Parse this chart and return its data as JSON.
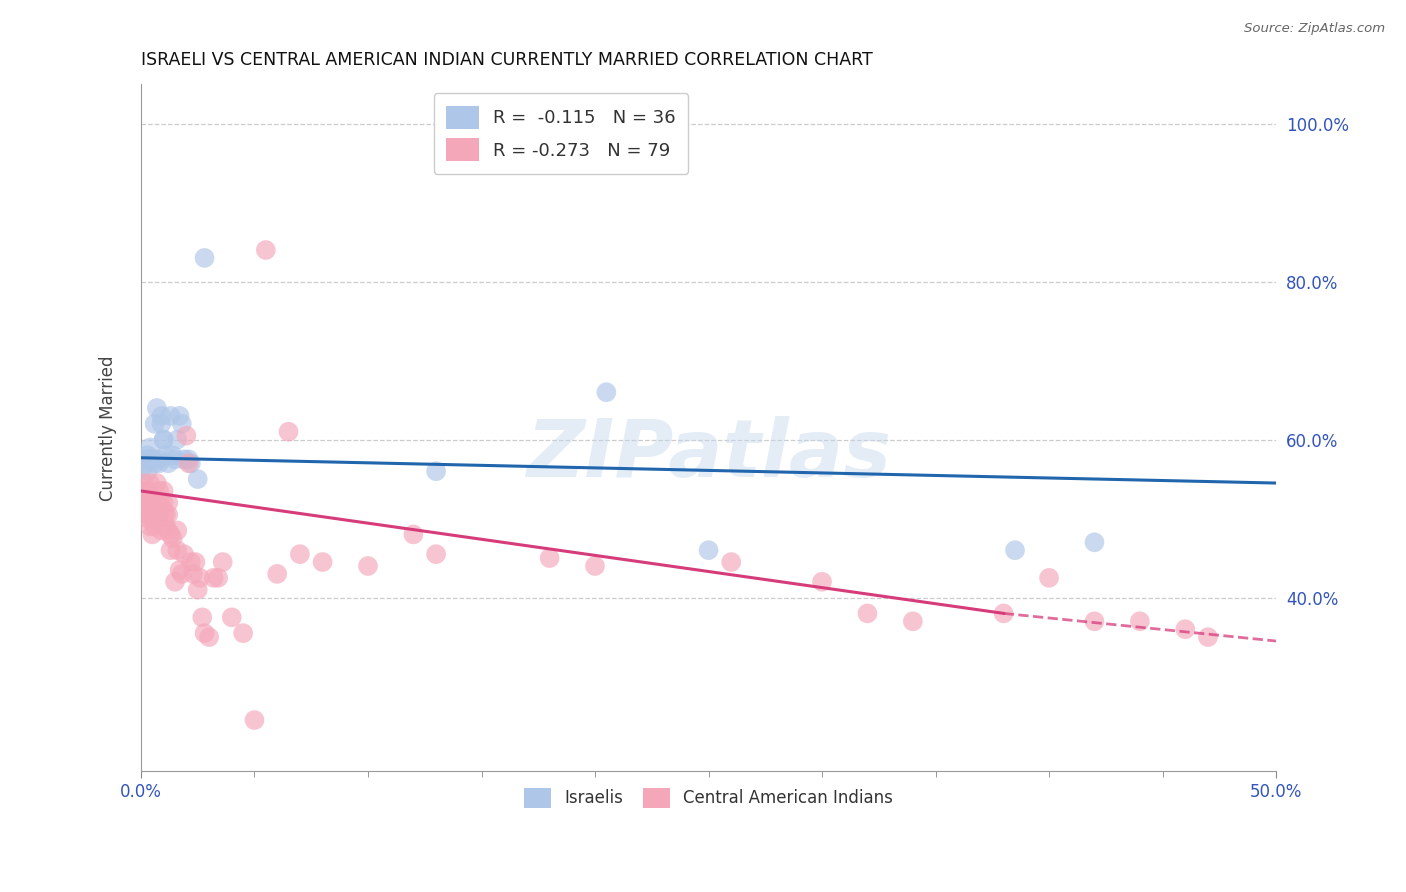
{
  "title": "ISRAELI VS CENTRAL AMERICAN INDIAN CURRENTLY MARRIED CORRELATION CHART",
  "source": "Source: ZipAtlas.com",
  "ylabel": "Currently Married",
  "xlim": [
    0.0,
    0.5
  ],
  "ylim": [
    0.18,
    1.05
  ],
  "xticks_minor": [
    0.05,
    0.1,
    0.15,
    0.2,
    0.25,
    0.3,
    0.35,
    0.4,
    0.45
  ],
  "xticks_labeled": [
    0.0,
    0.5
  ],
  "xtick_labels": [
    "0.0%",
    "50.0%"
  ],
  "yticks": [
    0.4,
    0.6,
    0.8,
    1.0
  ],
  "ytick_labels": [
    "40.0%",
    "60.0%",
    "80.0%",
    "100.0%"
  ],
  "legend_r_blue": "R =  -0.115",
  "legend_n_blue": "N = 36",
  "legend_r_pink": "R = -0.273",
  "legend_n_pink": "N = 79",
  "legend_label_blue": "Israelis",
  "legend_label_pink": "Central American Indians",
  "blue_color": "#aec6e8",
  "pink_color": "#f4a7b9",
  "trend_blue": "#2166ac",
  "trend_pink": "#d63b7a",
  "tick_label_color": "#3355bb",
  "watermark": "ZIPatlas",
  "israelis_x": [
    0.001,
    0.002,
    0.002,
    0.003,
    0.003,
    0.004,
    0.004,
    0.005,
    0.005,
    0.006,
    0.006,
    0.007,
    0.008,
    0.008,
    0.009,
    0.009,
    0.01,
    0.01,
    0.011,
    0.012,
    0.013,
    0.014,
    0.015,
    0.016,
    0.017,
    0.018,
    0.019,
    0.021,
    0.022,
    0.025,
    0.028,
    0.13,
    0.205,
    0.25,
    0.385,
    0.42
  ],
  "israelis_y": [
    0.565,
    0.575,
    0.57,
    0.58,
    0.56,
    0.575,
    0.59,
    0.575,
    0.575,
    0.57,
    0.62,
    0.64,
    0.57,
    0.575,
    0.63,
    0.62,
    0.6,
    0.6,
    0.58,
    0.57,
    0.63,
    0.58,
    0.575,
    0.6,
    0.63,
    0.62,
    0.575,
    0.575,
    0.57,
    0.55,
    0.83,
    0.56,
    0.66,
    0.46,
    0.46,
    0.47
  ],
  "ca_indians_x": [
    0.001,
    0.001,
    0.001,
    0.002,
    0.002,
    0.002,
    0.003,
    0.003,
    0.003,
    0.004,
    0.004,
    0.004,
    0.005,
    0.005,
    0.005,
    0.006,
    0.006,
    0.006,
    0.007,
    0.007,
    0.007,
    0.008,
    0.008,
    0.008,
    0.009,
    0.009,
    0.01,
    0.01,
    0.01,
    0.011,
    0.011,
    0.012,
    0.012,
    0.012,
    0.013,
    0.013,
    0.014,
    0.015,
    0.016,
    0.016,
    0.017,
    0.018,
    0.019,
    0.02,
    0.021,
    0.022,
    0.023,
    0.024,
    0.025,
    0.026,
    0.027,
    0.028,
    0.03,
    0.032,
    0.034,
    0.036,
    0.04,
    0.045,
    0.05,
    0.055,
    0.06,
    0.065,
    0.07,
    0.08,
    0.1,
    0.12,
    0.13,
    0.18,
    0.2,
    0.26,
    0.3,
    0.32,
    0.34,
    0.38,
    0.4,
    0.42,
    0.44,
    0.46,
    0.47
  ],
  "ca_indians_y": [
    0.535,
    0.545,
    0.52,
    0.505,
    0.52,
    0.535,
    0.5,
    0.515,
    0.535,
    0.49,
    0.505,
    0.545,
    0.48,
    0.5,
    0.52,
    0.49,
    0.515,
    0.52,
    0.5,
    0.515,
    0.545,
    0.505,
    0.515,
    0.535,
    0.485,
    0.515,
    0.505,
    0.52,
    0.535,
    0.49,
    0.505,
    0.485,
    0.505,
    0.52,
    0.46,
    0.48,
    0.475,
    0.42,
    0.46,
    0.485,
    0.435,
    0.43,
    0.455,
    0.605,
    0.57,
    0.445,
    0.43,
    0.445,
    0.41,
    0.425,
    0.375,
    0.355,
    0.35,
    0.425,
    0.425,
    0.445,
    0.375,
    0.355,
    0.245,
    0.84,
    0.43,
    0.61,
    0.455,
    0.445,
    0.44,
    0.48,
    0.455,
    0.45,
    0.44,
    0.445,
    0.42,
    0.38,
    0.37,
    0.38,
    0.425,
    0.37,
    0.37,
    0.36,
    0.35
  ],
  "trend_blue_x0": 0.0,
  "trend_blue_x1": 0.5,
  "trend_blue_y0": 0.577,
  "trend_blue_y1": 0.545,
  "trend_pink_x0": 0.0,
  "trend_pink_x1": 0.38,
  "trend_pink_dash_x0": 0.38,
  "trend_pink_dash_x1": 0.5,
  "trend_pink_y0": 0.535,
  "trend_pink_y1": 0.38,
  "trend_pink_dash_y1": 0.345
}
